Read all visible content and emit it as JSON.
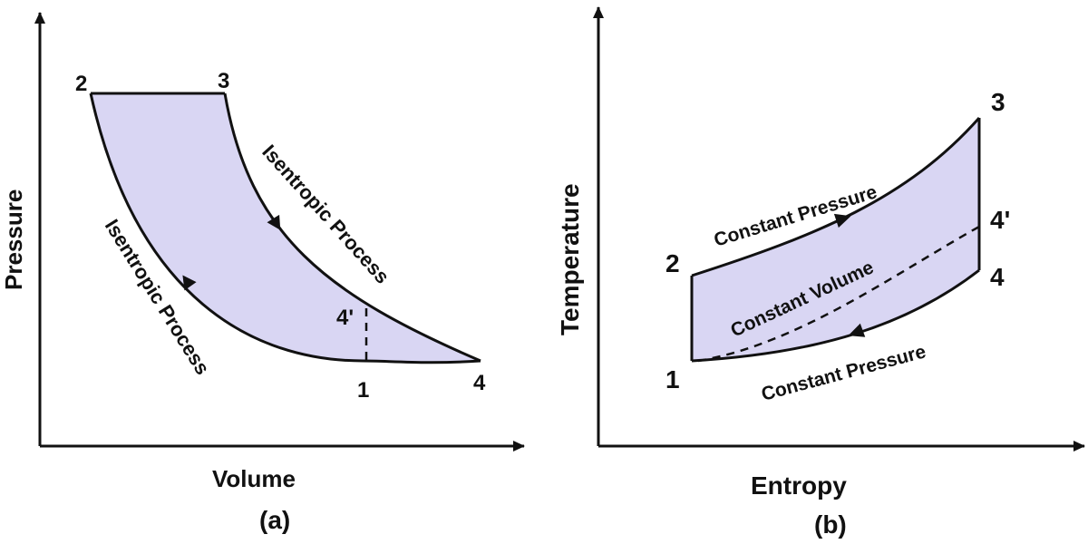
{
  "diagram_a": {
    "caption": "(a)",
    "x_axis_label": "Volume",
    "y_axis_label": "Pressure",
    "points": {
      "p1": "1",
      "p2": "2",
      "p3": "3",
      "p4": "4",
      "p4prime": "4'"
    },
    "process_upper": "Isentropic Process",
    "process_lower": "Isentropic Process",
    "fill_color": "#d9d6f3"
  },
  "diagram_b": {
    "caption": "(b)",
    "x_axis_label": "Entropy",
    "y_axis_label": "Temperature",
    "points": {
      "p1": "1",
      "p2": "2",
      "p3": "3",
      "p4": "4",
      "p4prime": "4'"
    },
    "process_top": "Constant Pressure",
    "process_middle": "Constant Volume",
    "process_bottom": "Constant Pressure",
    "fill_color": "#d9d6f3"
  }
}
